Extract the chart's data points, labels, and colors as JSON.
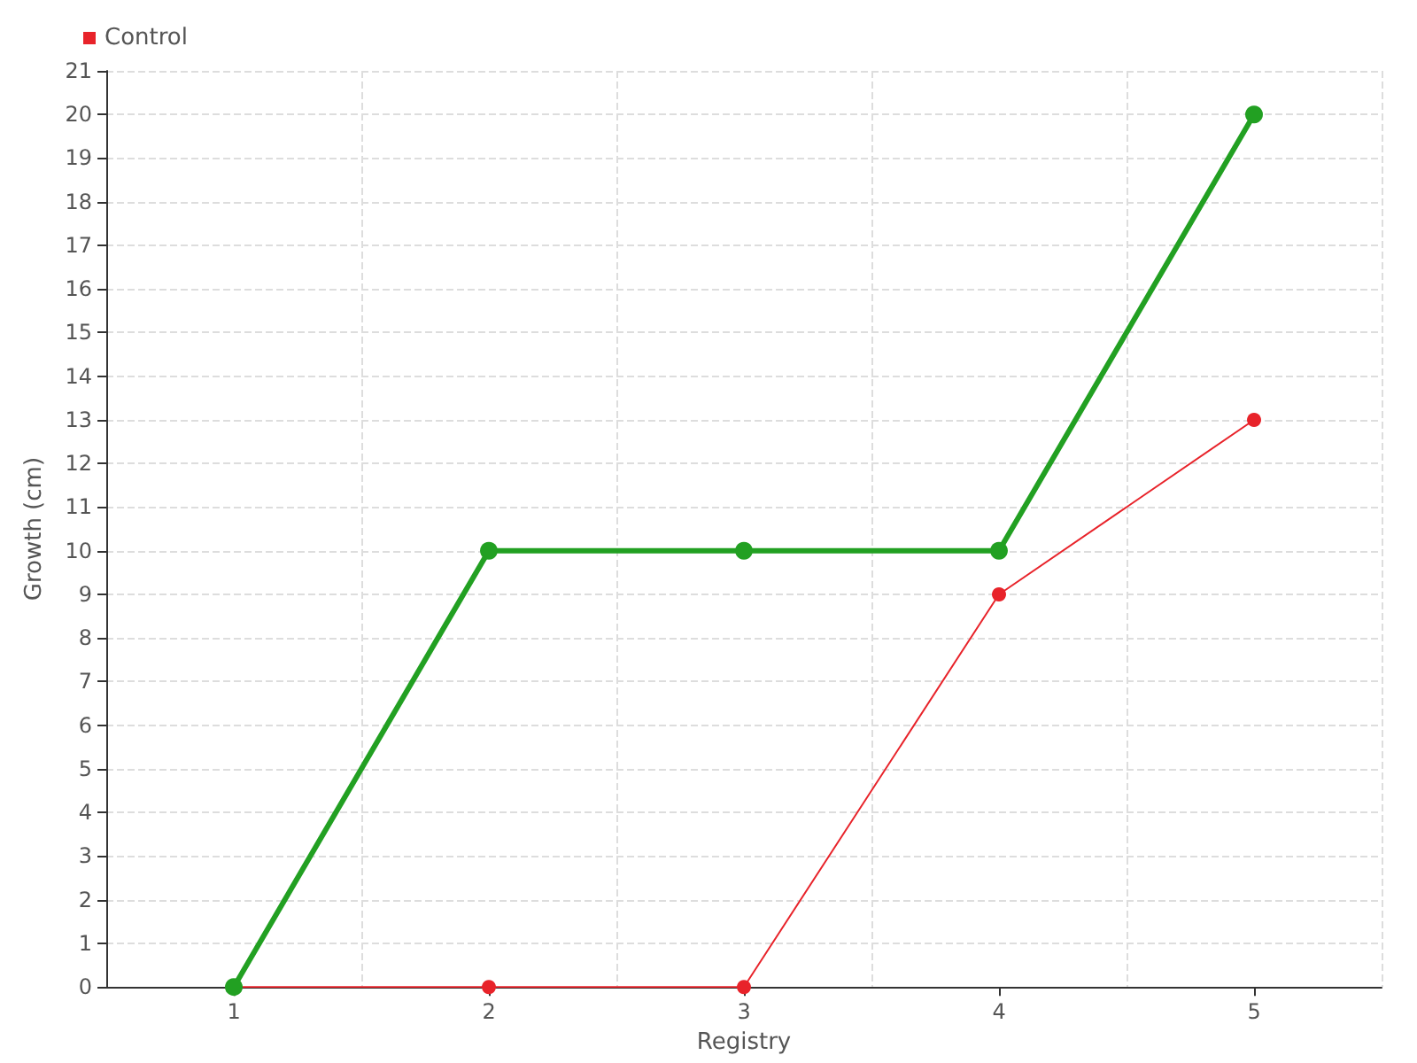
{
  "chart_data": {
    "type": "line",
    "xlabel": "Registry",
    "ylabel": "Growth (cm)",
    "categories": [
      "1",
      "2",
      "3",
      "4",
      "5"
    ],
    "series": [
      {
        "color": "#22a022",
        "values": [
          0,
          10,
          10,
          10,
          20
        ]
      },
      {
        "name": "Control",
        "color": "#e8232a",
        "values": [
          0,
          0,
          0,
          9,
          13
        ]
      }
    ],
    "ylim": [
      0,
      21
    ],
    "yticks": [
      0,
      1,
      2,
      3,
      4,
      5,
      6,
      7,
      8,
      9,
      10,
      11,
      12,
      13,
      14,
      15,
      16,
      17,
      18,
      19,
      20,
      21
    ],
    "grid": true,
    "legend": "top left",
    "marker": "circle",
    "line_style": "solid"
  }
}
